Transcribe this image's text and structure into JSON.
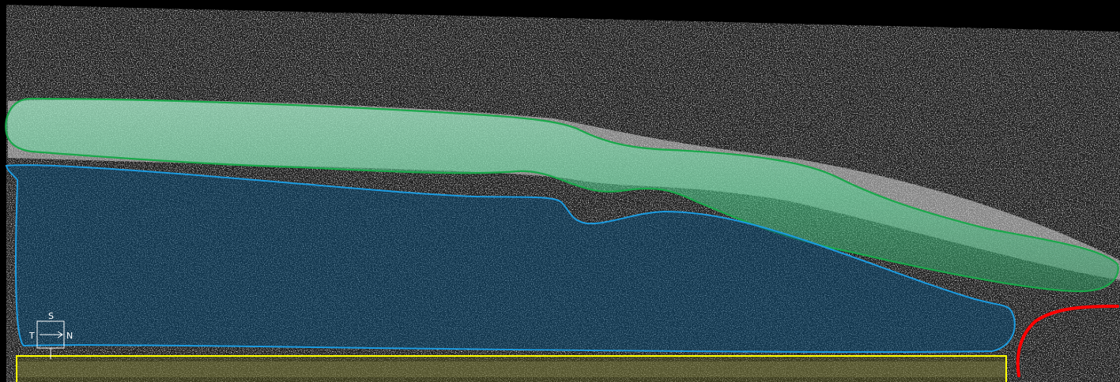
{
  "image": {
    "kind": "OCT B-scan cross-section with annotated regions",
    "background": "#000000",
    "noise_color": "#bdbdbd"
  },
  "regions": [
    {
      "name": "green-region",
      "outline_color": "#19a84a",
      "fill_color": "#3fd48a"
    },
    {
      "name": "blue-region",
      "outline_color": "#1b9be0",
      "fill_color": "#0b3a5a"
    },
    {
      "name": "yellow-box",
      "outline_color": "#ffff00",
      "fill_color": "#4a4a10"
    },
    {
      "name": "red-arc",
      "outline_color": "#ff0000"
    }
  ],
  "orientation": {
    "superior": "S",
    "temporal": "T",
    "nasal": "N"
  }
}
